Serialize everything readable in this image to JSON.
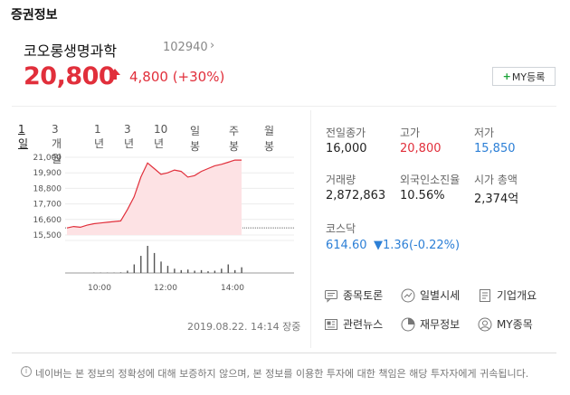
{
  "section_title": "증권정보",
  "stock": {
    "name": "코오롱생명과학",
    "code": "102940",
    "price": "20,800",
    "change": "4,800 (+30%)",
    "my_button": "MY등록",
    "my_button_plus": "+"
  },
  "tabs": [
    "1일",
    "3개월",
    "1년",
    "3년",
    "10년",
    "일봉",
    "주봉",
    "월봉"
  ],
  "active_tab": "1일",
  "chart_data": {
    "type": "line",
    "y_ticks": [
      "21,000",
      "19,900",
      "18,800",
      "17,700",
      "16,600",
      "15,500"
    ],
    "ylim": [
      15500,
      21000
    ],
    "x_ticks": [
      "10:00",
      "12:00",
      "14:00"
    ],
    "baseline": 16000,
    "x": [
      "09:00",
      "09:15",
      "09:30",
      "09:45",
      "10:00",
      "10:15",
      "10:30",
      "10:45",
      "10:55",
      "11:00",
      "11:05",
      "11:10",
      "11:15",
      "11:20",
      "11:30",
      "11:40",
      "11:50",
      "12:00",
      "12:15",
      "12:30",
      "12:45",
      "13:00",
      "13:15",
      "13:30",
      "13:45",
      "14:00",
      "14:14"
    ],
    "values": [
      16000,
      16100,
      16050,
      16200,
      16300,
      16350,
      16400,
      16450,
      16500,
      17300,
      18200,
      19600,
      20600,
      20200,
      19800,
      19900,
      20100,
      20000,
      19600,
      19700,
      20000,
      20200,
      20400,
      20500,
      20650,
      20800,
      20800
    ],
    "volume": [
      0,
      0,
      0,
      0,
      1,
      1,
      1,
      1,
      2,
      8,
      30,
      60,
      95,
      70,
      40,
      25,
      15,
      10,
      12,
      8,
      10,
      6,
      8,
      15,
      30,
      10,
      20
    ],
    "grid": true
  },
  "timestamp": "2019.08.22. 14:14 장중",
  "info": {
    "prev_close_label": "전일종가",
    "prev_close": "16,000",
    "high_label": "고가",
    "high": "20,800",
    "low_label": "저가",
    "low": "15,850",
    "volume_label": "거래량",
    "volume": "2,872,863",
    "foreign_label": "외국인소진율",
    "foreign": "10.56%",
    "mktcap_label": "시가 총액",
    "mktcap": "2,374억",
    "index_label": "코스닥",
    "index_value": "614.60",
    "index_change": "▼1.36(-0.22%)"
  },
  "menu": {
    "discussion": "종목토론",
    "daily": "일별시세",
    "company": "기업개요",
    "news": "관련뉴스",
    "finance": "재무정보",
    "my_stocks": "MY종목"
  },
  "disclaimer": "네이버는 본 정보의 정확성에 대해 보증하지 않으며, 본 정보를 이용한 투자에 대한 책임은 해당 투자자에게 귀속됩니다.",
  "colors": {
    "up": "#e12f3b",
    "down": "#2c7fd6",
    "plus": "#1aa238"
  }
}
